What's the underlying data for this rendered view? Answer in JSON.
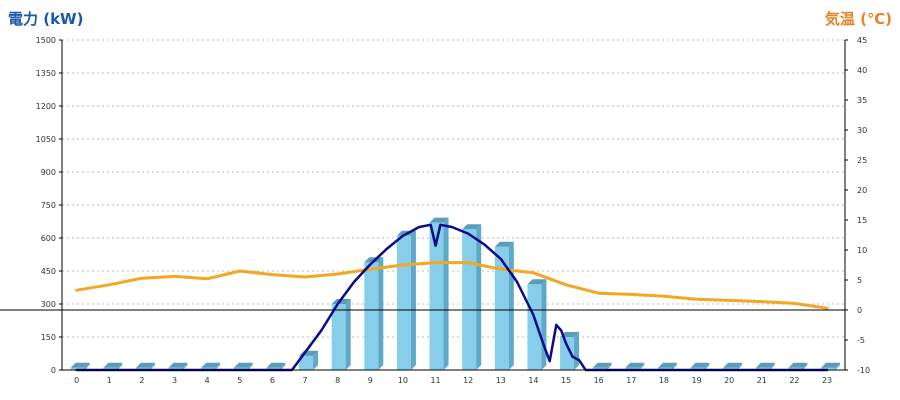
{
  "chart_data": {
    "type": "bar",
    "y_left_label": "電力 (kW)",
    "y_right_label": "気温 (℃)",
    "colors": {
      "power_bar": "#87ceeb",
      "power_line": "#0a0a8a",
      "temperature": "#f5a623",
      "left_label": "#1a5aa6",
      "right_label": "#e8812a"
    },
    "categories": [
      "0",
      "1",
      "2",
      "3",
      "4",
      "5",
      "6",
      "7",
      "8",
      "9",
      "10",
      "11",
      "12",
      "13",
      "14",
      "15",
      "16",
      "17",
      "18",
      "19",
      "20",
      "21",
      "22",
      "23"
    ],
    "y_left_ticks": [
      0,
      150,
      300,
      450,
      600,
      750,
      900,
      1050,
      1200,
      1350,
      1500
    ],
    "y_right_ticks": [
      -10,
      -5,
      0,
      5,
      10,
      15,
      20,
      25,
      30,
      35,
      40,
      45
    ],
    "y_left_range": [
      0,
      1500
    ],
    "y_right_range": [
      -10,
      45
    ],
    "series": [
      {
        "name": "電力 (bar)",
        "type": "bar",
        "axis": "left",
        "values": [
          10,
          10,
          10,
          10,
          10,
          10,
          10,
          65,
          300,
          490,
          610,
          670,
          640,
          560,
          390,
          150,
          10,
          10,
          10,
          10,
          10,
          10,
          10,
          10
        ]
      },
      {
        "name": "電力 (line)",
        "type": "line",
        "axis": "left",
        "x": [
          0,
          1,
          2,
          3,
          4,
          5,
          6,
          6.6,
          7,
          7.5,
          8,
          8.5,
          9,
          9.5,
          10,
          10.5,
          10.85,
          11,
          11.15,
          11.5,
          12,
          12.5,
          13,
          13.5,
          14,
          14.3,
          14.5,
          14.7,
          14.85,
          15,
          15.2,
          15.4,
          15.6,
          16,
          17,
          18,
          19,
          20,
          21,
          22,
          23
        ],
        "y": [
          0,
          0,
          0,
          0,
          0,
          0,
          0,
          0,
          80,
          180,
          300,
          400,
          480,
          550,
          610,
          650,
          660,
          565,
          660,
          650,
          620,
          570,
          505,
          400,
          250,
          120,
          40,
          205,
          180,
          120,
          60,
          45,
          0,
          0,
          0,
          0,
          0,
          0,
          0,
          0,
          0
        ]
      },
      {
        "name": "気温",
        "type": "line",
        "axis": "right",
        "x": [
          0,
          1,
          2,
          3,
          4,
          5,
          6,
          7,
          8,
          9,
          10,
          11,
          12,
          13,
          14,
          15,
          16,
          17,
          18,
          19,
          20,
          21,
          22,
          23
        ],
        "y": [
          3.3,
          4.2,
          5.3,
          5.6,
          5.2,
          6.5,
          5.9,
          5.5,
          6.0,
          6.8,
          7.5,
          7.9,
          7.9,
          6.8,
          6.2,
          4.2,
          2.8,
          2.6,
          2.3,
          1.8,
          1.6,
          1.4,
          1.1,
          0.3
        ]
      }
    ]
  }
}
